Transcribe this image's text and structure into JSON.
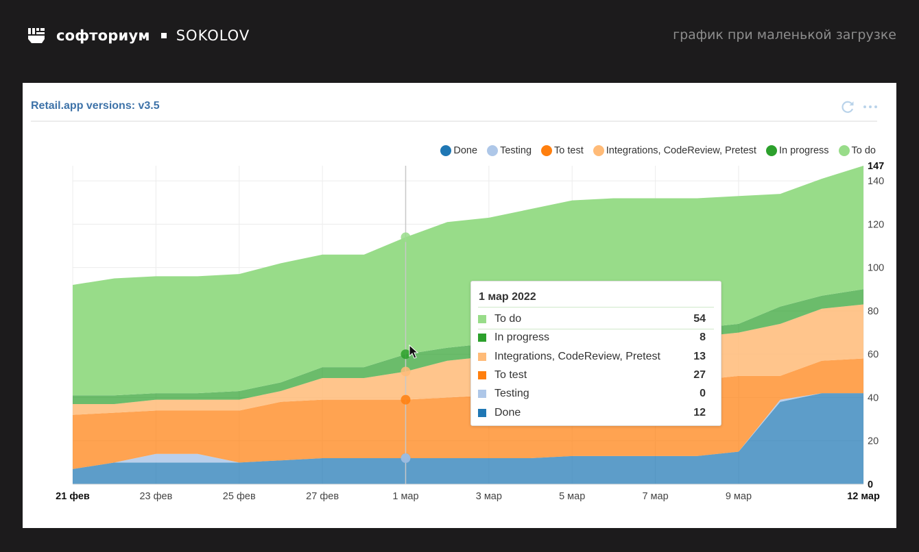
{
  "header": {
    "brand": "софториум",
    "partner": "SOKOLOV",
    "subtitle": "график при маленькой загрузке",
    "logo_icon": "fist-icon"
  },
  "widget": {
    "title": "Retail.app versions: v3.5",
    "refresh_icon": "refresh-icon",
    "more_icon": "more-dots-icon"
  },
  "tooltip": {
    "title": "1 мар 2022",
    "rows": [
      {
        "label": "To do",
        "value": "54",
        "color": "#98dc89"
      },
      {
        "label": "In progress",
        "value": "8",
        "color": "#2ca02c"
      },
      {
        "label": "Integrations, CodeReview, Pretest",
        "value": "13",
        "color": "#ffbb78"
      },
      {
        "label": "To test",
        "value": "27",
        "color": "#ff7f0e"
      },
      {
        "label": "Testing",
        "value": "0",
        "color": "#aec7e8"
      },
      {
        "label": "Done",
        "value": "12",
        "color": "#1f77b4"
      }
    ]
  },
  "chart_data": {
    "type": "area",
    "stacked": true,
    "title": "Retail.app versions: v3.5",
    "xlabel": "",
    "ylabel": "",
    "x": [
      "21 фев",
      "22 фев",
      "23 фев",
      "24 фев",
      "25 фев",
      "26 фев",
      "27 фев",
      "28 фев",
      "1 мар",
      "2 мар",
      "3 мар",
      "4 мар",
      "5 мар",
      "6 мар",
      "7 мар",
      "8 мар",
      "9 мар",
      "10 мар",
      "11 мар",
      "12 мар"
    ],
    "x_tick_labels": [
      "21 фев",
      "23 фев",
      "25 фев",
      "27 фев",
      "1 мар",
      "3 мар",
      "5 мар",
      "7 мар",
      "9 мар",
      "12 мар"
    ],
    "x_tick_indices": [
      0,
      2,
      4,
      6,
      8,
      10,
      12,
      14,
      16,
      19
    ],
    "x_bold_ticks": [
      "21 фев",
      "12 мар"
    ],
    "y_ticks": [
      0,
      20,
      40,
      60,
      80,
      100,
      120,
      140
    ],
    "y_max_label": "147",
    "ylim": [
      0,
      147
    ],
    "y_axis_side": "right",
    "grid": true,
    "legend_position": "top-right",
    "highlight_index": 8,
    "series": [
      {
        "name": "Done",
        "color": "#1f77b4",
        "values": [
          7,
          10,
          10,
          10,
          10,
          11,
          12,
          12,
          12,
          12,
          12,
          12,
          13,
          13,
          13,
          13,
          15,
          38,
          42,
          42
        ]
      },
      {
        "name": "Testing",
        "color": "#aec7e8",
        "values": [
          0,
          0,
          4,
          4,
          0,
          0,
          0,
          0,
          0,
          0,
          0,
          0,
          0,
          0,
          0,
          0,
          0,
          1,
          0,
          0
        ]
      },
      {
        "name": "To test",
        "color": "#ff7f0e",
        "values": [
          25,
          23,
          20,
          20,
          24,
          27,
          27,
          27,
          27,
          28,
          29,
          30,
          30,
          32,
          33,
          35,
          35,
          11,
          15,
          16
        ]
      },
      {
        "name": "Integrations, CodeReview, Pretest",
        "color": "#ffbb78",
        "values": [
          5,
          4,
          5,
          5,
          5,
          5,
          10,
          10,
          13,
          17,
          18,
          19,
          20,
          20,
          21,
          20,
          20,
          24,
          24,
          25
        ]
      },
      {
        "name": "In progress",
        "color": "#2ca02c",
        "values": [
          4,
          4,
          3,
          3,
          4,
          4,
          5,
          5,
          8,
          6,
          6,
          6,
          5,
          5,
          4,
          4,
          4,
          8,
          6,
          7
        ]
      },
      {
        "name": "To do",
        "color": "#98dc89",
        "values": [
          51,
          54,
          54,
          54,
          54,
          55,
          52,
          52,
          54,
          58,
          58,
          60,
          63,
          62,
          61,
          60,
          59,
          52,
          54,
          57
        ]
      }
    ]
  }
}
